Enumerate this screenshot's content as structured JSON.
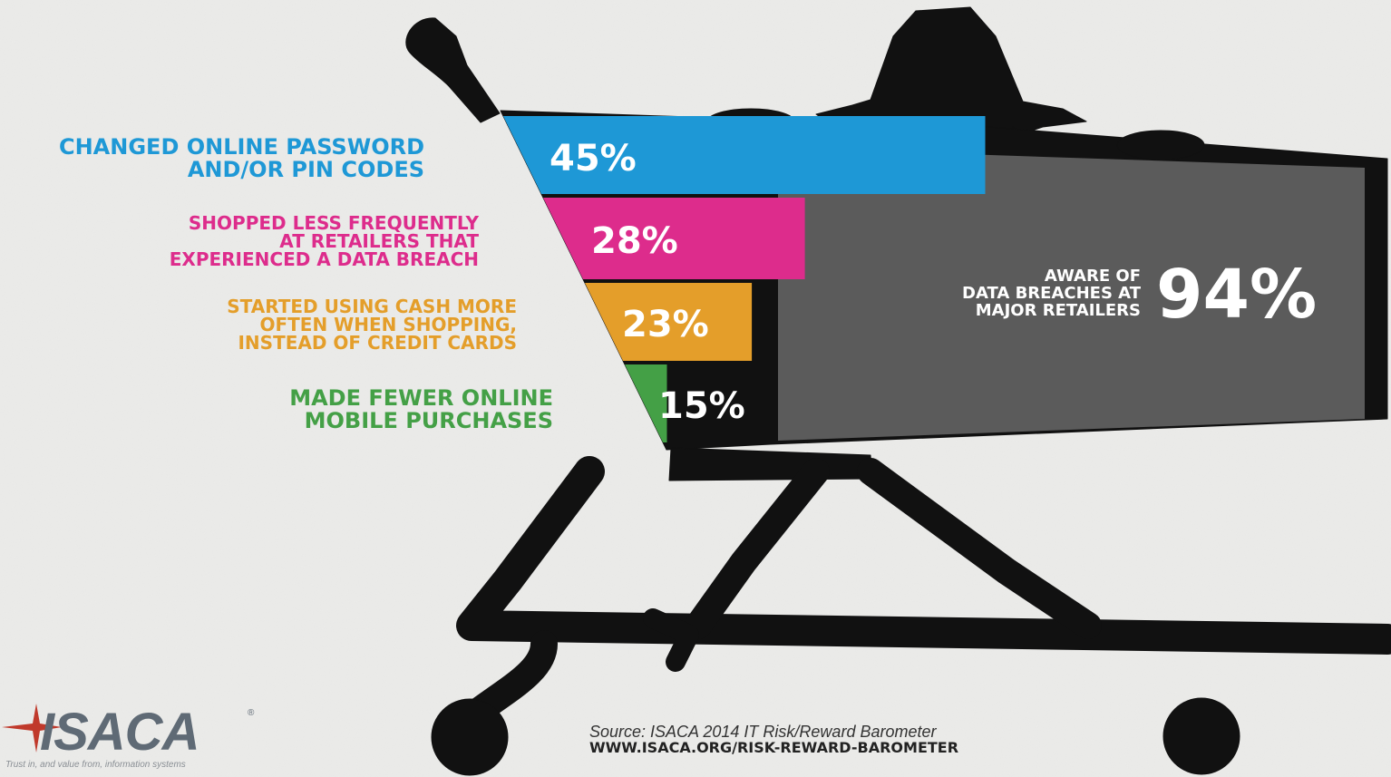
{
  "chart_data": {
    "type": "bar",
    "orientation": "horizontal",
    "categories": [
      "CHANGED ONLINE PASSWORD AND/OR PIN CODES",
      "SHOPPED LESS FREQUENTLY AT RETAILERS THAT EXPERIENCED A DATA BREACH",
      "STARTED USING CASH MORE OFTEN WHEN SHOPPING, INSTEAD OF CREDIT CARDS",
      "MADE FEWER ONLINE MOBILE PURCHASES"
    ],
    "values": [
      45,
      28,
      23,
      15
    ],
    "value_labels": [
      "45%",
      "28%",
      "23%",
      "15%"
    ],
    "bars": [
      {
        "label_lines": [
          "CHANGED ONLINE PASSWORD",
          "AND/OR PIN CODES"
        ],
        "value": 45,
        "value_label": "45%",
        "color": "#1e98d6"
      },
      {
        "label_lines": [
          "SHOPPED LESS FREQUENTLY",
          "AT RETAILERS THAT",
          "EXPERIENCED A DATA BREACH"
        ],
        "value": 28,
        "value_label": "28%",
        "color": "#dd2c8c"
      },
      {
        "label_lines": [
          "STARTED USING CASH MORE",
          "OFTEN WHEN SHOPPING,",
          "INSTEAD OF CREDIT CARDS"
        ],
        "value": 23,
        "value_label": "23%",
        "color": "#e49e2a"
      },
      {
        "label_lines": [
          "MADE FEWER ONLINE",
          "MOBILE PURCHASES"
        ],
        "value": 15,
        "value_label": "15%",
        "color": "#44a046"
      }
    ],
    "total": {
      "label_lines": [
        "AWARE OF",
        "DATA BREACHES AT",
        "MAJOR RETAILERS"
      ],
      "value": 94,
      "value_label": "94%",
      "color": "#5b5b5b"
    }
  },
  "footer": {
    "logo": "ISACA",
    "logo_mark": "®",
    "tagline": "Trust in, and value from, information systems",
    "source": "Source: ISACA 2014 IT Risk/Reward Barometer",
    "url": "WWW.ISACA.ORG/RISK-REWARD-BAROMETER"
  },
  "colors": {
    "background": "#ececea",
    "silhouette": "#111111",
    "logo": "#5f6a75",
    "logo_star": "#c0392b"
  }
}
